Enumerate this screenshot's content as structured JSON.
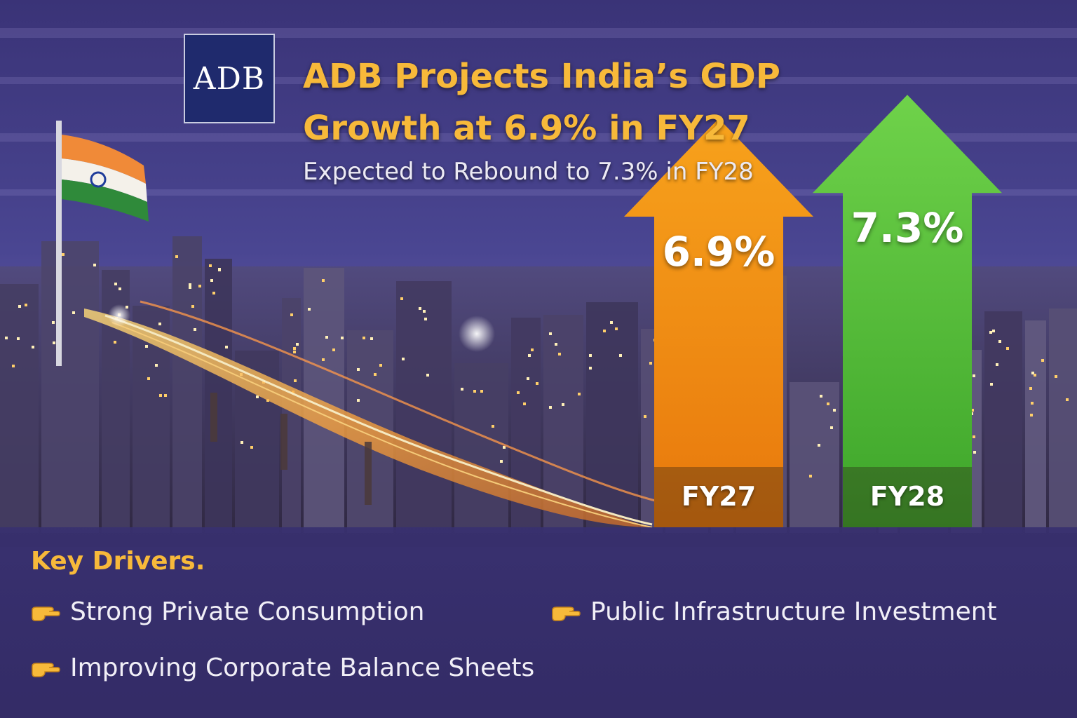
{
  "logo": {
    "text": "ADB"
  },
  "header": {
    "title_line1": "ADB Projects India’s GDP",
    "title_line2": "Growth at 6.9% in FY27",
    "subtitle": "Expected to Rebound to 7.3% in FY28"
  },
  "colors": {
    "accent_gold": "#f7b93a",
    "fy27_orange": "#f08a12",
    "fy28_green": "#52c233",
    "panel_purple": "#3a3270"
  },
  "chart_data": {
    "type": "bar",
    "categories": [
      "FY27",
      "FY28"
    ],
    "values": [
      6.9,
      7.3
    ],
    "value_labels": [
      "6.9%",
      "7.3%"
    ],
    "colors": [
      "#f08a12",
      "#52c233"
    ]
  },
  "drivers": {
    "title": "Key Drivers.",
    "items": [
      {
        "label": "Strong Private Consumption",
        "icon": "pointing-hand-icon"
      },
      {
        "label": "Public Infrastructure Investment",
        "icon": "pointing-hand-icon"
      },
      {
        "label": "Improving Corporate Balance Sheets",
        "icon": "pointing-hand-icon"
      }
    ]
  }
}
